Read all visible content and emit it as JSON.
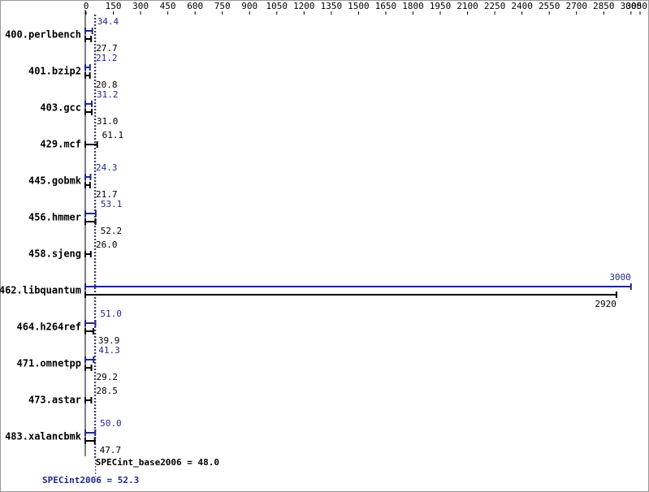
{
  "chart_data": {
    "type": "bar",
    "orientation": "horizontal",
    "categories": [
      "400.perlbench",
      "401.bzip2",
      "403.gcc",
      "429.mcf",
      "445.gobmk",
      "456.hmmer",
      "458.sjeng",
      "462.libquantum",
      "464.h264ref",
      "471.omnetpp",
      "473.astar",
      "483.xalancbmk"
    ],
    "series": [
      {
        "color": "#1e2a8c",
        "values": [
          34.4,
          21.2,
          31.2,
          null,
          24.3,
          53.1,
          null,
          3000,
          51.0,
          41.3,
          null,
          50.0
        ],
        "value_labels": [
          "34.4",
          "21.2",
          "31.2",
          null,
          "24.3",
          "53.1",
          null,
          "3000",
          "51.0",
          "41.3",
          null,
          "50.0"
        ]
      },
      {
        "color": "#000000",
        "values": [
          27.7,
          20.8,
          31.0,
          61.1,
          21.7,
          52.2,
          26.0,
          2920,
          39.9,
          29.2,
          28.5,
          47.7
        ],
        "value_labels": [
          "27.7",
          "20.8",
          "31.0",
          "61.1",
          "21.7",
          "52.2",
          "26.0",
          "2920",
          "39.9",
          "29.2",
          "28.5",
          "47.7"
        ]
      }
    ],
    "xlim": [
      0,
      3050
    ],
    "xticks": [
      0,
      150,
      300,
      450,
      600,
      750,
      900,
      1050,
      1200,
      1350,
      1500,
      1650,
      1800,
      1950,
      2100,
      2250,
      2400,
      2550,
      2700,
      2850,
      3000,
      3050
    ],
    "summary": [
      {
        "label": "SPECint_base2006 = 48.0",
        "value": 48.0,
        "color": "#000000"
      },
      {
        "label": "SPECint2006 = 52.3",
        "value": 52.3,
        "color": "#1e2a8c"
      }
    ]
  }
}
